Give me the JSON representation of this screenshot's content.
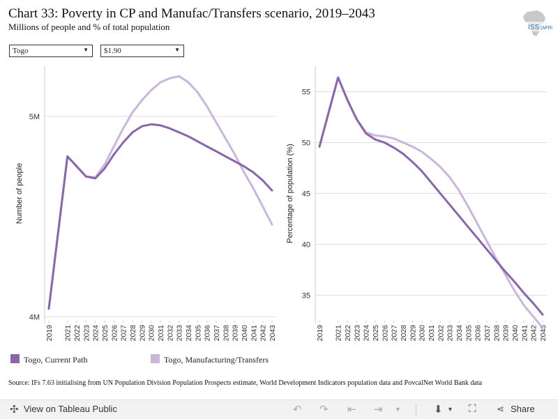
{
  "header": {
    "title": "Chart 33: Poverty in CP and Manufac/Transfers scenario, 2019–2043",
    "subtitle": "Millions of people and % of total population",
    "logo_text": "ISS|AFRICA"
  },
  "filters": {
    "country": "Togo",
    "poverty_line": "$1.90"
  },
  "colors": {
    "current_path": "#8a65ad",
    "manufacturing": "#c9b6dc",
    "grid": "#dddddd"
  },
  "chart_data": [
    {
      "type": "line",
      "ylabel": "Number of people",
      "ylim": [
        3.98,
        5.25
      ],
      "yticks": [
        4,
        5
      ],
      "ytick_labels": [
        "4M",
        "5M"
      ],
      "x": [
        2019,
        2021,
        2022,
        2023,
        2024,
        2025,
        2026,
        2027,
        2028,
        2029,
        2030,
        2031,
        2032,
        2033,
        2034,
        2035,
        2036,
        2037,
        2038,
        2039,
        2040,
        2041,
        2042,
        2043
      ],
      "series": [
        {
          "name": "Togo, Current Path",
          "values": [
            4.04,
            4.8,
            4.75,
            4.7,
            4.69,
            4.74,
            4.81,
            4.87,
            4.92,
            4.95,
            4.96,
            4.955,
            4.94,
            4.92,
            4.9,
            4.875,
            4.85,
            4.825,
            4.8,
            4.775,
            4.75,
            4.72,
            4.68,
            4.63
          ]
        },
        {
          "name": "Togo, Manufacturing/Transfers",
          "values": [
            4.04,
            4.8,
            4.75,
            4.7,
            4.695,
            4.76,
            4.85,
            4.94,
            5.02,
            5.08,
            5.13,
            5.17,
            5.19,
            5.2,
            5.17,
            5.12,
            5.05,
            4.97,
            4.89,
            4.81,
            4.72,
            4.64,
            4.55,
            4.46
          ]
        }
      ]
    },
    {
      "type": "line",
      "ylabel": "Percentage of population (%)",
      "ylim": [
        32.5,
        57.5
      ],
      "yticks": [
        35,
        40,
        45,
        50,
        55
      ],
      "ytick_labels": [
        "35",
        "40",
        "45",
        "50",
        "55"
      ],
      "x": [
        2019,
        2021,
        2022,
        2023,
        2024,
        2025,
        2026,
        2027,
        2028,
        2029,
        2030,
        2031,
        2032,
        2033,
        2034,
        2035,
        2036,
        2037,
        2038,
        2039,
        2040,
        2041,
        2042,
        2043
      ],
      "series": [
        {
          "name": "Togo, Current Path",
          "values": [
            49.6,
            56.4,
            54.2,
            52.3,
            50.9,
            50.3,
            50.0,
            49.5,
            48.9,
            48.1,
            47.2,
            46.1,
            45.0,
            43.9,
            42.8,
            41.7,
            40.6,
            39.5,
            38.4,
            37.3,
            36.3,
            35.2,
            34.2,
            33.1
          ]
        },
        {
          "name": "Togo, Manufacturing/Transfers",
          "values": [
            49.6,
            56.4,
            54.2,
            52.3,
            51.0,
            50.7,
            50.6,
            50.4,
            50.0,
            49.6,
            49.1,
            48.4,
            47.6,
            46.6,
            45.3,
            43.7,
            42.0,
            40.3,
            38.6,
            37.0,
            35.4,
            34.0,
            32.9,
            31.8
          ]
        }
      ]
    }
  ],
  "legend": [
    {
      "label": "Togo, Current Path"
    },
    {
      "label": "Togo, Manufacturing/Transfers"
    }
  ],
  "source": "Source: IFs 7.63 initialising from UN Population Division Population Prospects estimate, World Development Indicators population data and PovcalNet World Bank data",
  "footer": {
    "view_label": "View on Tableau Public",
    "share_label": "Share"
  }
}
